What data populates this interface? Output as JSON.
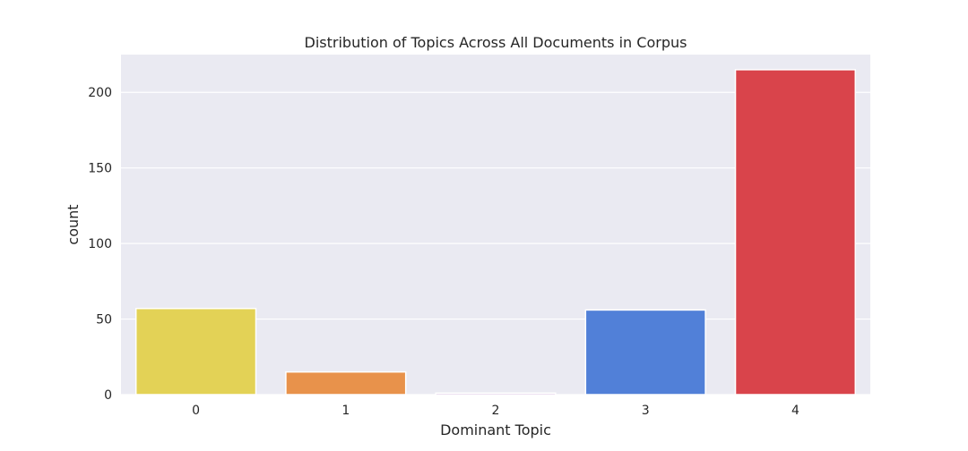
{
  "chart_data": {
    "type": "bar",
    "title": "Distribution of Topics Across All Documents in Corpus",
    "xlabel": "Dominant Topic",
    "ylabel": "count",
    "categories": [
      "0",
      "1",
      "2",
      "3",
      "4"
    ],
    "values": [
      57,
      15,
      1,
      56,
      215
    ],
    "colors": [
      "#e3d256",
      "#e8924b",
      "#9b59b6",
      "#5180d8",
      "#d9444b"
    ],
    "ylim": [
      0,
      225
    ],
    "yticks": [
      0,
      50,
      100,
      150,
      200
    ],
    "grid": true,
    "background": "#eaeaf2",
    "legend": "none"
  }
}
